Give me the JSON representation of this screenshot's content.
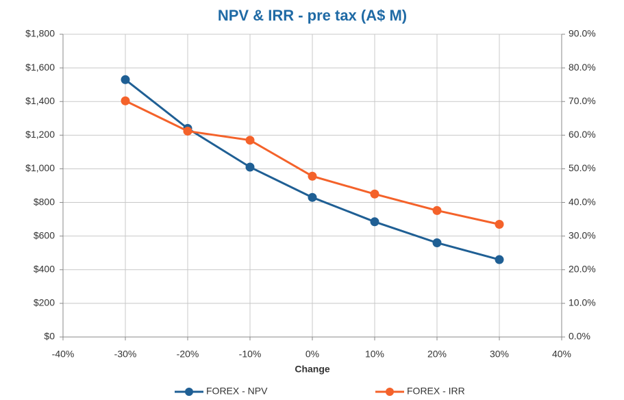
{
  "chart_data": {
    "type": "line",
    "title": "NPV & IRR - pre tax (A$ M)",
    "x_label": "Change",
    "x": [
      -30,
      -20,
      -10,
      0,
      10,
      20,
      30
    ],
    "xlim": [
      -40,
      40
    ],
    "xticks": [
      {
        "value": -40,
        "label": "-40%"
      },
      {
        "value": -30,
        "label": "-30%"
      },
      {
        "value": -20,
        "label": "-20%"
      },
      {
        "value": -10,
        "label": "-10%"
      },
      {
        "value": 0,
        "label": "0%"
      },
      {
        "value": 10,
        "label": "10%"
      },
      {
        "value": 20,
        "label": "20%"
      },
      {
        "value": 30,
        "label": "30%"
      },
      {
        "value": 40,
        "label": "40%"
      }
    ],
    "ylim": [
      0,
      1800
    ],
    "yticks": [
      {
        "value": 0,
        "label": "$0"
      },
      {
        "value": 200,
        "label": "$200"
      },
      {
        "value": 400,
        "label": "$400"
      },
      {
        "value": 600,
        "label": "$600"
      },
      {
        "value": 800,
        "label": "$800"
      },
      {
        "value": 1000,
        "label": "$1,000"
      },
      {
        "value": 1200,
        "label": "$1,200"
      },
      {
        "value": 1400,
        "label": "$1,400"
      },
      {
        "value": 1600,
        "label": "$1,600"
      },
      {
        "value": 1800,
        "label": "$1,800"
      }
    ],
    "y2lim": [
      0,
      90
    ],
    "y2ticks": [
      {
        "value": 0,
        "label": "0.0%"
      },
      {
        "value": 10,
        "label": "10.0%"
      },
      {
        "value": 20,
        "label": "20.0%"
      },
      {
        "value": 30,
        "label": "30.0%"
      },
      {
        "value": 40,
        "label": "40.0%"
      },
      {
        "value": 50,
        "label": "50.0%"
      },
      {
        "value": 60,
        "label": "60.0%"
      },
      {
        "value": 70,
        "label": "70.0%"
      },
      {
        "value": 80,
        "label": "80.0%"
      },
      {
        "value": 90,
        "label": "90.0%"
      }
    ],
    "grid": true,
    "legend": "bottom",
    "series": [
      {
        "name": "FOREX - NPV",
        "color": "#1f5f94",
        "values": [
          1530,
          1240,
          1010,
          830,
          685,
          560,
          460
        ]
      },
      {
        "name": "FOREX - IRR",
        "color": "#f4622a",
        "axis": "y2",
        "values": [
          70.2,
          61.2,
          58.5,
          47.8,
          42.5,
          37.6,
          33.5
        ]
      }
    ]
  }
}
